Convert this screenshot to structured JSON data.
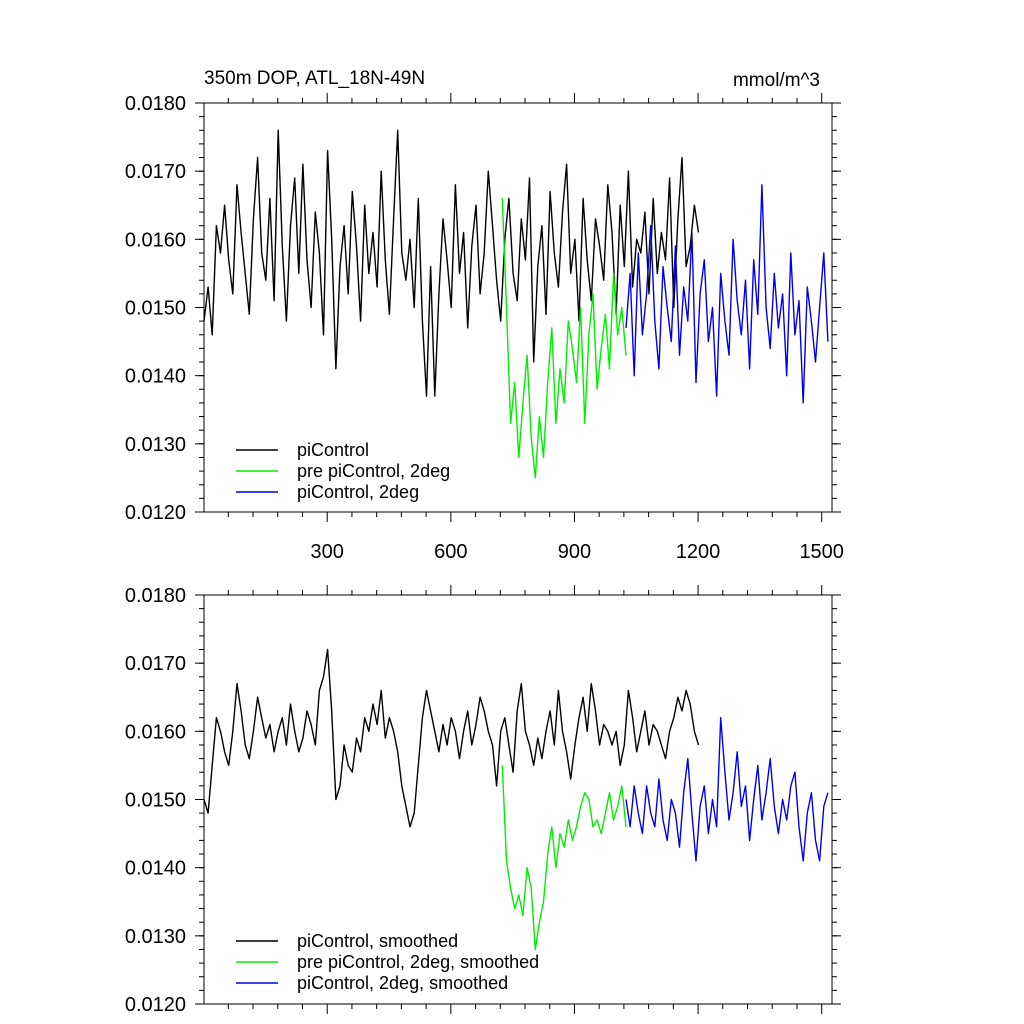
{
  "chart_data": [
    {
      "type": "line",
      "title": "350m DOP, ATL_18N-49N",
      "units_label": "mmol/m^3",
      "xlim": [
        1,
        1525
      ],
      "ylim": [
        0.012,
        0.018
      ],
      "x_ticks": [
        300,
        600,
        900,
        1200,
        1500
      ],
      "x_tick_labels": [
        "300",
        "600",
        "900",
        "1200",
        "1500"
      ],
      "y_ticks": [
        0.012,
        0.013,
        0.014,
        0.015,
        0.016,
        0.017,
        0.018
      ],
      "y_tick_labels": [
        "0.0120",
        "0.0130",
        "0.0140",
        "0.0150",
        "0.0160",
        "0.0170",
        "0.0180"
      ],
      "legend_position": "bottom-left",
      "series": [
        {
          "name": "piControl",
          "color": "#000000",
          "x_start": 1,
          "x_step": 10,
          "values": [
            0.0148,
            0.0153,
            0.0146,
            0.0162,
            0.0158,
            0.0165,
            0.0157,
            0.0152,
            0.0168,
            0.0161,
            0.0155,
            0.0149,
            0.0163,
            0.0172,
            0.0158,
            0.0154,
            0.0166,
            0.0151,
            0.0176,
            0.0159,
            0.0148,
            0.0162,
            0.0169,
            0.0155,
            0.0171,
            0.0157,
            0.015,
            0.0164,
            0.0158,
            0.0146,
            0.0173,
            0.016,
            0.0141,
            0.0156,
            0.0162,
            0.0152,
            0.0167,
            0.0159,
            0.0148,
            0.0165,
            0.0155,
            0.0161,
            0.0153,
            0.017,
            0.0157,
            0.0149,
            0.0163,
            0.0176,
            0.0158,
            0.0154,
            0.016,
            0.015,
            0.0166,
            0.0148,
            0.0137,
            0.0156,
            0.0137,
            0.0152,
            0.0163,
            0.0157,
            0.015,
            0.0168,
            0.0155,
            0.0161,
            0.0147,
            0.0159,
            0.0165,
            0.0152,
            0.0158,
            0.017,
            0.0162,
            0.0154,
            0.0148,
            0.016,
            0.0166,
            0.0155,
            0.0151,
            0.0163,
            0.0157,
            0.0169,
            0.0142,
            0.0156,
            0.0162,
            0.0149,
            0.0167,
            0.0158,
            0.0153,
            0.0164,
            0.0171,
            0.0155,
            0.016,
            0.0148,
            0.0166,
            0.0157,
            0.0151,
            0.0163,
            0.0159,
            0.0154,
            0.0168,
            0.0161,
            0.0149,
            0.0165,
            0.0156,
            0.017,
            0.0153,
            0.016,
            0.0158,
            0.0164,
            0.0152,
            0.0166,
            0.0155,
            0.0161,
            0.0157,
            0.0169,
            0.015,
            0.0163,
            0.0172,
            0.0156,
            0.0159,
            0.0165,
            0.0161
          ]
        },
        {
          "name": "pre piControl, 2deg",
          "color": "#00ee00",
          "x_start": 725,
          "x_step": 10,
          "values": [
            0.0166,
            0.015,
            0.0133,
            0.0139,
            0.0128,
            0.0136,
            0.0143,
            0.0131,
            0.0125,
            0.0134,
            0.0128,
            0.0139,
            0.0147,
            0.0133,
            0.0141,
            0.0136,
            0.0148,
            0.0144,
            0.0139,
            0.015,
            0.0133,
            0.0146,
            0.0152,
            0.0138,
            0.0144,
            0.0149,
            0.0141,
            0.0155,
            0.0146,
            0.015,
            0.0143
          ]
        },
        {
          "name": "piControl, 2deg",
          "color": "#0000ee",
          "x_start": 1025,
          "x_step": 10,
          "values": [
            0.0147,
            0.0155,
            0.014,
            0.0158,
            0.0146,
            0.0152,
            0.0162,
            0.0148,
            0.0141,
            0.0156,
            0.015,
            0.0145,
            0.0159,
            0.0143,
            0.0153,
            0.0148,
            0.0161,
            0.0139,
            0.0152,
            0.0157,
            0.0145,
            0.015,
            0.0137,
            0.0155,
            0.0148,
            0.0143,
            0.016,
            0.0151,
            0.0146,
            0.0154,
            0.0141,
            0.0157,
            0.0149,
            0.0168,
            0.015,
            0.0144,
            0.0155,
            0.0147,
            0.0152,
            0.014,
            0.0158,
            0.0146,
            0.0151,
            0.0136,
            0.0153,
            0.0148,
            0.0142,
            0.015,
            0.0158,
            0.0145
          ]
        }
      ]
    },
    {
      "type": "line",
      "xlim": [
        1,
        1525
      ],
      "ylim": [
        0.012,
        0.018
      ],
      "x_ticks": [
        300,
        600,
        900,
        1200,
        1500
      ],
      "y_ticks": [
        0.012,
        0.013,
        0.014,
        0.015,
        0.016,
        0.017,
        0.018
      ],
      "y_tick_labels": [
        "0.0120",
        "0.0130",
        "0.0140",
        "0.0150",
        "0.0160",
        "0.0170",
        "0.0180"
      ],
      "legend_position": "bottom-left",
      "series": [
        {
          "name": "piControl, smoothed",
          "color": "#000000",
          "x_start": 1,
          "x_step": 10,
          "values": [
            0.015,
            0.0148,
            0.0155,
            0.0162,
            0.016,
            0.0157,
            0.0155,
            0.016,
            0.0167,
            0.0163,
            0.0158,
            0.0156,
            0.016,
            0.0165,
            0.0162,
            0.0159,
            0.0161,
            0.0157,
            0.016,
            0.0162,
            0.0158,
            0.0164,
            0.016,
            0.0157,
            0.0159,
            0.0163,
            0.0161,
            0.0158,
            0.0166,
            0.0168,
            0.0172,
            0.0163,
            0.015,
            0.0152,
            0.0158,
            0.0155,
            0.0154,
            0.0159,
            0.0157,
            0.0162,
            0.016,
            0.0164,
            0.0161,
            0.0166,
            0.0159,
            0.0162,
            0.016,
            0.0157,
            0.0152,
            0.0149,
            0.0146,
            0.0148,
            0.0155,
            0.0162,
            0.0166,
            0.0163,
            0.016,
            0.0157,
            0.0161,
            0.0158,
            0.0162,
            0.016,
            0.0156,
            0.016,
            0.0163,
            0.0158,
            0.0161,
            0.0165,
            0.0163,
            0.016,
            0.0158,
            0.0152,
            0.016,
            0.0162,
            0.0158,
            0.0154,
            0.0163,
            0.0167,
            0.016,
            0.0158,
            0.0155,
            0.0159,
            0.0156,
            0.016,
            0.0163,
            0.0158,
            0.0166,
            0.016,
            0.0157,
            0.0153,
            0.0158,
            0.0162,
            0.0165,
            0.016,
            0.0167,
            0.0163,
            0.0158,
            0.0161,
            0.016,
            0.0158,
            0.016,
            0.0155,
            0.0158,
            0.0166,
            0.0162,
            0.0157,
            0.016,
            0.0163,
            0.0158,
            0.0161,
            0.016,
            0.0158,
            0.0156,
            0.016,
            0.0162,
            0.0165,
            0.0163,
            0.0166,
            0.0164,
            0.016,
            0.0158
          ]
        },
        {
          "name": "pre piControl, 2deg, smoothed",
          "color": "#00ee00",
          "x_start": 725,
          "x_step": 10,
          "values": [
            0.0155,
            0.0141,
            0.0137,
            0.0134,
            0.0136,
            0.0133,
            0.014,
            0.0137,
            0.0128,
            0.0132,
            0.0135,
            0.0142,
            0.0146,
            0.014,
            0.0145,
            0.0143,
            0.0147,
            0.0144,
            0.0146,
            0.0149,
            0.0151,
            0.015,
            0.0146,
            0.0147,
            0.0145,
            0.0148,
            0.0151,
            0.0147,
            0.0149,
            0.0152,
            0.0146
          ]
        },
        {
          "name": "piControl, 2deg, smoothed",
          "color": "#0000ee",
          "x_start": 1025,
          "x_step": 10,
          "values": [
            0.015,
            0.0146,
            0.0152,
            0.0148,
            0.0145,
            0.0152,
            0.0148,
            0.0146,
            0.0153,
            0.0147,
            0.0144,
            0.015,
            0.0148,
            0.0143,
            0.0151,
            0.0156,
            0.0148,
            0.0141,
            0.0149,
            0.0152,
            0.0145,
            0.015,
            0.0146,
            0.0162,
            0.0154,
            0.0147,
            0.0151,
            0.0157,
            0.0149,
            0.0152,
            0.0144,
            0.015,
            0.0155,
            0.0147,
            0.0151,
            0.0156,
            0.0149,
            0.0145,
            0.015,
            0.0147,
            0.0152,
            0.0154,
            0.0146,
            0.0141,
            0.0148,
            0.0151,
            0.0144,
            0.0141,
            0.0149,
            0.0151
          ]
        }
      ]
    }
  ]
}
